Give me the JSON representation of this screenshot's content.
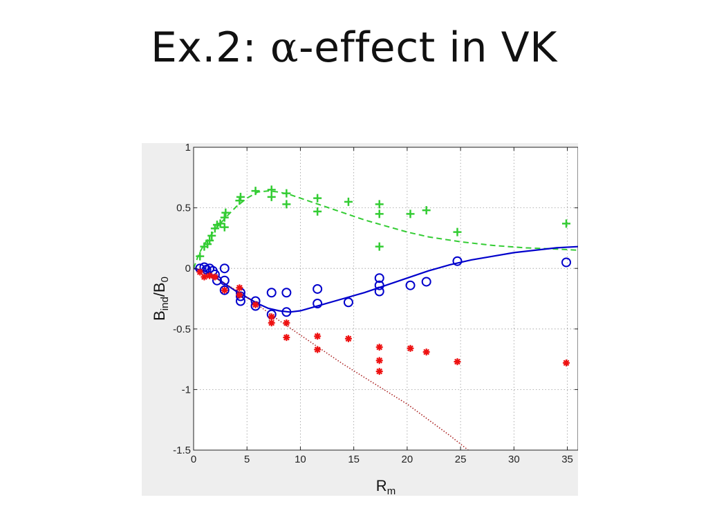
{
  "slide": {
    "title_prefix": "Ex.2: ",
    "title_symbol": "α",
    "title_suffix": "-effect in VK"
  },
  "chart_data": {
    "type": "scatter",
    "xlabel": {
      "main": "R",
      "sub": "m"
    },
    "ylabel": {
      "main": "B",
      "sub1": "ind",
      "mid": "/B",
      "sub2": "0"
    },
    "xlim": [
      0,
      36
    ],
    "ylim": [
      -1.5,
      1
    ],
    "xticks": [
      0,
      5,
      10,
      15,
      20,
      25,
      30,
      35
    ],
    "xtick_labels": [
      "0",
      "5",
      "10",
      "15",
      "20",
      "25",
      "30",
      "35"
    ],
    "yticks": [
      1,
      0.5,
      0,
      -0.5,
      -1,
      -1.5
    ],
    "ytick_labels": [
      "1",
      "0.5",
      "0",
      "-0.5",
      "-1",
      "-1.5"
    ],
    "grid": true,
    "colors": {
      "green": "#33cc33",
      "blue": "#0000cc",
      "red": "#ee1111",
      "darkred": "#aa2222",
      "plot_bg": "#ffffff",
      "figure_bg": "#eeeeee"
    },
    "series": [
      {
        "marker": "plus",
        "color": "#33cc33",
        "points": [
          [
            0.6,
            0.1
          ],
          [
            1.0,
            0.18
          ],
          [
            1.3,
            0.2
          ],
          [
            1.5,
            0.23
          ],
          [
            1.7,
            0.27
          ],
          [
            2.0,
            0.33
          ],
          [
            2.2,
            0.36
          ],
          [
            2.5,
            0.37
          ],
          [
            2.9,
            0.34
          ],
          [
            2.9,
            0.42
          ],
          [
            3.0,
            0.46
          ],
          [
            4.3,
            0.56
          ],
          [
            4.4,
            0.59
          ],
          [
            5.8,
            0.64
          ],
          [
            7.3,
            0.59
          ],
          [
            7.3,
            0.65
          ],
          [
            8.7,
            0.53
          ],
          [
            8.7,
            0.62
          ],
          [
            11.6,
            0.47
          ],
          [
            11.6,
            0.58
          ],
          [
            14.5,
            0.55
          ],
          [
            17.4,
            0.18
          ],
          [
            17.4,
            0.45
          ],
          [
            17.4,
            0.53
          ],
          [
            20.3,
            0.45
          ],
          [
            21.8,
            0.48
          ],
          [
            24.7,
            0.3
          ],
          [
            34.9,
            0.37
          ]
        ]
      },
      {
        "marker": "circle",
        "color": "#0000cc",
        "points": [
          [
            0.6,
            0.0
          ],
          [
            1.0,
            0.01
          ],
          [
            1.2,
            -0.01
          ],
          [
            1.5,
            0.0
          ],
          [
            1.8,
            -0.02
          ],
          [
            2.0,
            -0.05
          ],
          [
            2.2,
            -0.1
          ],
          [
            2.9,
            0.0
          ],
          [
            2.9,
            -0.1
          ],
          [
            2.9,
            -0.18
          ],
          [
            4.4,
            -0.2
          ],
          [
            4.4,
            -0.23
          ],
          [
            4.4,
            -0.27
          ],
          [
            5.8,
            -0.27
          ],
          [
            5.8,
            -0.31
          ],
          [
            7.3,
            -0.2
          ],
          [
            7.3,
            -0.38
          ],
          [
            8.7,
            -0.2
          ],
          [
            8.7,
            -0.36
          ],
          [
            11.6,
            -0.17
          ],
          [
            11.6,
            -0.29
          ],
          [
            14.5,
            -0.28
          ],
          [
            17.4,
            -0.08
          ],
          [
            17.4,
            -0.14
          ],
          [
            17.4,
            -0.19
          ],
          [
            20.3,
            -0.14
          ],
          [
            21.8,
            -0.11
          ],
          [
            24.7,
            0.06
          ],
          [
            34.9,
            0.05
          ]
        ]
      },
      {
        "marker": "asterisk",
        "color": "#ee1111",
        "points": [
          [
            0.6,
            -0.03
          ],
          [
            1.0,
            -0.07
          ],
          [
            1.5,
            -0.06
          ],
          [
            2.0,
            -0.07
          ],
          [
            2.9,
            -0.18
          ],
          [
            4.3,
            -0.16
          ],
          [
            4.3,
            -0.22
          ],
          [
            5.8,
            -0.3
          ],
          [
            7.3,
            -0.4
          ],
          [
            7.3,
            -0.45
          ],
          [
            8.7,
            -0.45
          ],
          [
            8.7,
            -0.57
          ],
          [
            11.6,
            -0.56
          ],
          [
            11.6,
            -0.67
          ],
          [
            14.5,
            -0.58
          ],
          [
            17.4,
            -0.65
          ],
          [
            17.4,
            -0.76
          ],
          [
            17.4,
            -0.85
          ],
          [
            20.3,
            -0.66
          ],
          [
            21.8,
            -0.69
          ],
          [
            24.7,
            -0.77
          ],
          [
            34.9,
            -0.78
          ]
        ]
      },
      {
        "line": "dashed",
        "color": "#33cc33",
        "points": [
          [
            0,
            0
          ],
          [
            0.5,
            0.12
          ],
          [
            1,
            0.2
          ],
          [
            1.5,
            0.26
          ],
          [
            2,
            0.32
          ],
          [
            3,
            0.42
          ],
          [
            4,
            0.51
          ],
          [
            5,
            0.58
          ],
          [
            6,
            0.63
          ],
          [
            7,
            0.64
          ],
          [
            8,
            0.63
          ],
          [
            9,
            0.61
          ],
          [
            10,
            0.58
          ],
          [
            12,
            0.52
          ],
          [
            14,
            0.46
          ],
          [
            16,
            0.4
          ],
          [
            18,
            0.35
          ],
          [
            20,
            0.3
          ],
          [
            22,
            0.26
          ],
          [
            25,
            0.22
          ],
          [
            28,
            0.19
          ],
          [
            31,
            0.17
          ],
          [
            34,
            0.16
          ],
          [
            36,
            0.15
          ]
        ]
      },
      {
        "line": "solid",
        "color": "#0000cc",
        "points": [
          [
            0,
            0
          ],
          [
            1,
            -0.02
          ],
          [
            2,
            -0.07
          ],
          [
            3,
            -0.13
          ],
          [
            4,
            -0.19
          ],
          [
            5,
            -0.24
          ],
          [
            6,
            -0.29
          ],
          [
            7,
            -0.33
          ],
          [
            8,
            -0.35
          ],
          [
            9,
            -0.36
          ],
          [
            10,
            -0.35
          ],
          [
            12,
            -0.3
          ],
          [
            14,
            -0.25
          ],
          [
            16,
            -0.2
          ],
          [
            18,
            -0.14
          ],
          [
            20,
            -0.08
          ],
          [
            22,
            -0.02
          ],
          [
            24,
            0.03
          ],
          [
            26,
            0.07
          ],
          [
            28,
            0.1
          ],
          [
            30,
            0.13
          ],
          [
            32,
            0.15
          ],
          [
            34,
            0.17
          ],
          [
            36,
            0.18
          ]
        ]
      },
      {
        "line": "dotted",
        "color": "#aa2222",
        "points": [
          [
            0,
            0
          ],
          [
            2,
            -0.08
          ],
          [
            4,
            -0.18
          ],
          [
            6,
            -0.3
          ],
          [
            8,
            -0.43
          ],
          [
            10,
            -0.55
          ],
          [
            12,
            -0.67
          ],
          [
            14,
            -0.79
          ],
          [
            16,
            -0.9
          ],
          [
            18,
            -1.01
          ],
          [
            20,
            -1.12
          ],
          [
            22,
            -1.25
          ],
          [
            24,
            -1.38
          ],
          [
            26,
            -1.52
          ]
        ]
      }
    ]
  }
}
